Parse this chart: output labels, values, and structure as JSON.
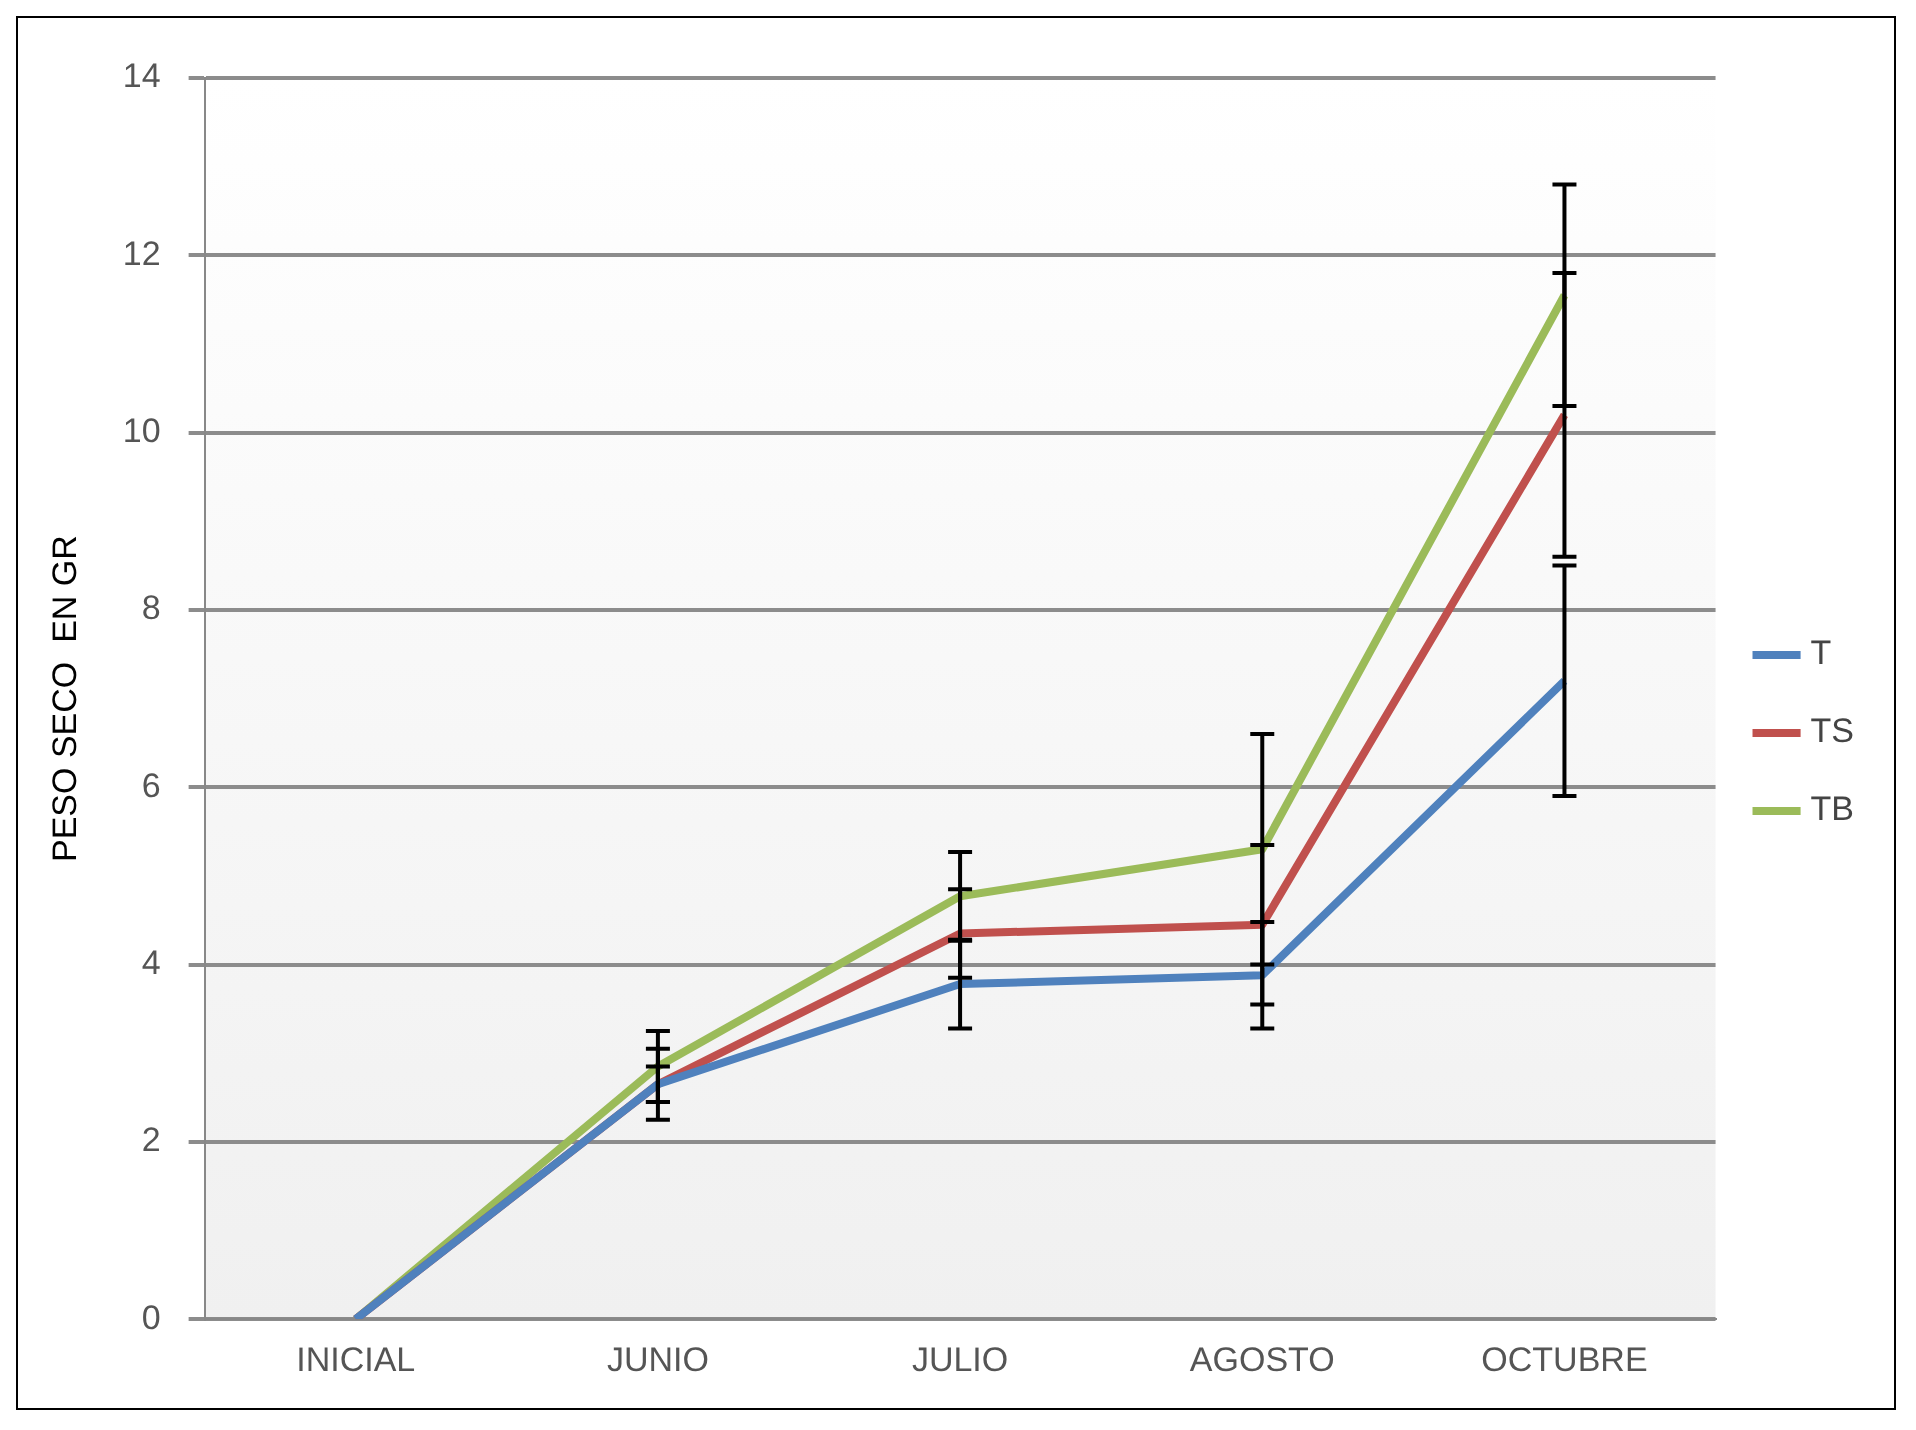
{
  "chart_data": {
    "type": "line",
    "ylabel": "PESO SECO  EN GR",
    "categories": [
      "INICIAL",
      "JUNIO",
      "JULIO",
      "AGOSTO",
      "OCTUBRE"
    ],
    "series": [
      {
        "name": "T",
        "color": "#4f81bd",
        "values": [
          0,
          2.65,
          3.78,
          3.88,
          7.2
        ],
        "errors": [
          null,
          0.2,
          0.5,
          0.6,
          1.3
        ]
      },
      {
        "name": "TS",
        "color": "#c0504d",
        "values": [
          0,
          2.65,
          4.35,
          4.45,
          10.2
        ],
        "errors": [
          null,
          0.4,
          0.5,
          0.9,
          1.6
        ]
      },
      {
        "name": "TB",
        "color": "#9bbb59",
        "values": [
          0,
          2.85,
          4.77,
          5.3,
          11.55
        ],
        "errors": [
          null,
          0.4,
          0.5,
          1.3,
          1.25
        ]
      }
    ],
    "ylim": [
      0,
      14
    ],
    "yticks": [
      0,
      2,
      4,
      6,
      8,
      10,
      12,
      14
    ],
    "grid": "y",
    "legend": "right",
    "marker": "none",
    "line_style": "solid"
  }
}
